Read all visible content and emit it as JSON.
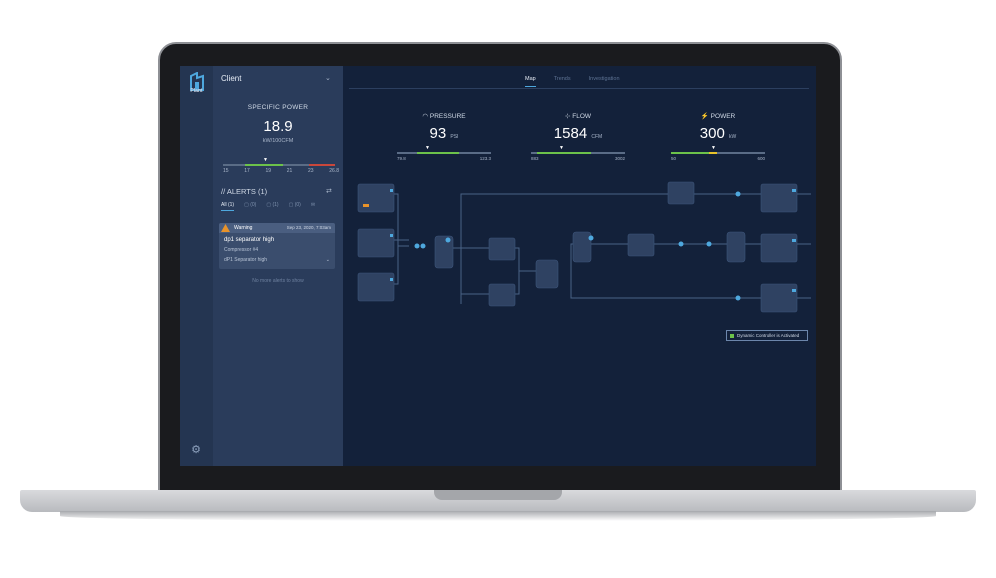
{
  "app": {
    "logo_text": "Plant"
  },
  "sidebar": {
    "client": "Client",
    "specific_power": {
      "title": "SPECIFIC POWER",
      "value": "18.9",
      "unit": "kW/100CFM",
      "ticks": [
        "15",
        "17",
        "19",
        "21",
        "23",
        "26.8"
      ],
      "marker_value": 19
    },
    "alerts": {
      "title": "// ALERTS (1)",
      "tabs": [
        "All (1)",
        "(0)",
        "(1)",
        "(0)",
        ""
      ],
      "card": {
        "level": "Warning",
        "date": "Sep 23, 2020, 7:03am",
        "title": "dp1 separator high",
        "compressor": "Compressor #4",
        "detail": "dP1 Separator high"
      },
      "empty_text": "No more alerts to show"
    }
  },
  "main": {
    "tabs": [
      "Map",
      "Trends",
      "Investigation"
    ],
    "active_tab": "Map",
    "kpis": [
      {
        "label": "PRESSURE",
        "value": "93",
        "unit": "PSI",
        "min": "79.8",
        "max": "123.3",
        "fill_fraction": 0.45
      },
      {
        "label": "FLOW",
        "value": "1584",
        "unit": "CFM",
        "min": "883",
        "max": "3002",
        "fill_fraction": 0.33
      },
      {
        "label": "POWER",
        "value": "300",
        "unit": "kW",
        "min": "50",
        "max": "600",
        "fill_fraction": 0.45
      }
    ],
    "dynamic_controller": "Dynamic Controller is Activated"
  },
  "colors": {
    "background": "#13213a",
    "sidebar": "#2a3c5b",
    "accent": "#4ea8de",
    "ok": "#6cc24a",
    "warning": "#e8932a",
    "alarm": "#c9473b"
  }
}
